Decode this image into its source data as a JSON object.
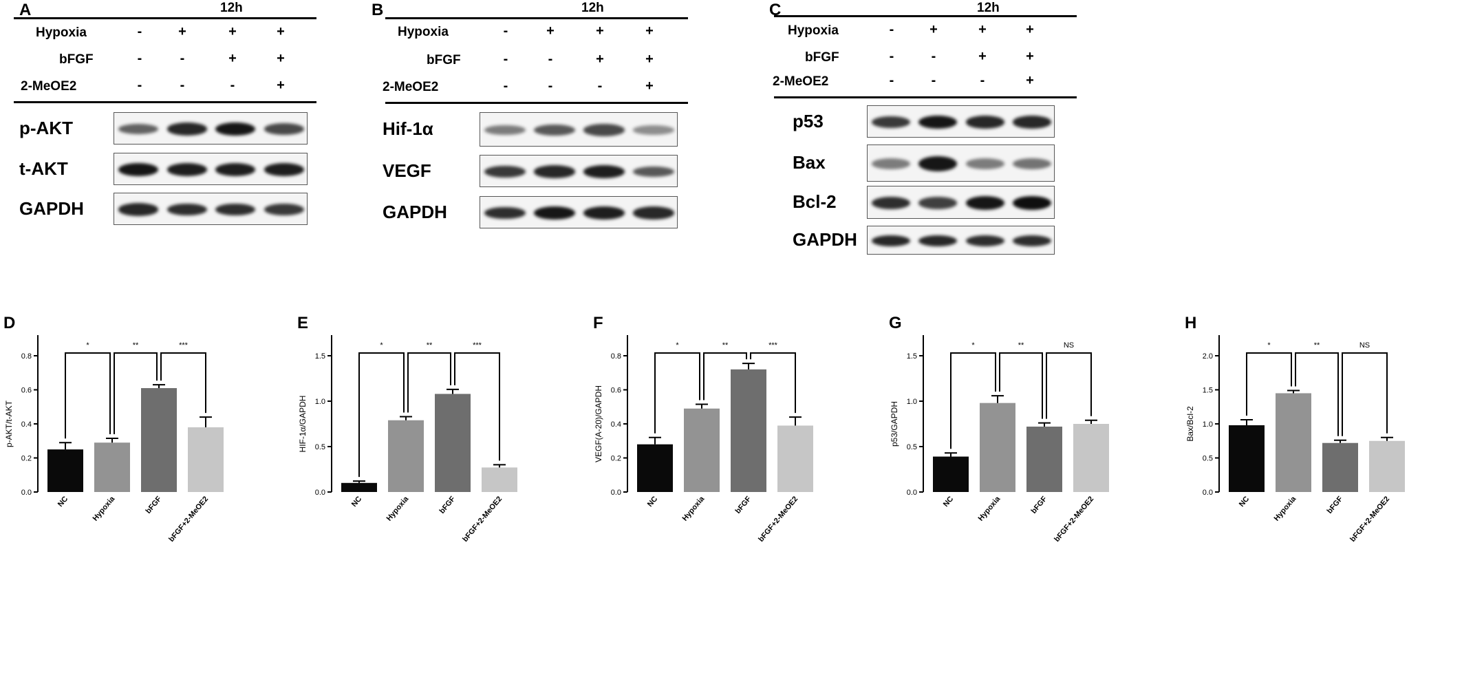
{
  "conditions": {
    "hypoxia": "Hypoxia",
    "bfgf": "bFGF",
    "meoe2": "2-MeOE2",
    "plus": "+",
    "minus": "-"
  },
  "panel_A": {
    "label": "A",
    "time": "12h",
    "proteins": [
      "p-AKT",
      "t-AKT",
      "GAPDH"
    ]
  },
  "panel_B": {
    "label": "B",
    "time": "12h",
    "proteins": [
      "Hif-1α",
      "VEGF",
      "GAPDH"
    ]
  },
  "panel_C": {
    "label": "C",
    "time": "12h",
    "proteins": [
      "p53",
      "Bax",
      "Bcl-2",
      "GAPDH"
    ]
  },
  "chart_data": [
    {
      "type": "bar",
      "panel": "D",
      "ylabel": "p-AKT/t-AKT",
      "categories": [
        "NC",
        "Hypoxia",
        "bFGF",
        "bFGF+2-MeOE2"
      ],
      "values": [
        0.25,
        0.29,
        0.61,
        0.38
      ],
      "errors": [
        0.04,
        0.025,
        0.02,
        0.06
      ],
      "ylim": [
        0,
        0.8
      ],
      "yticks": [
        "0.0",
        "0.2",
        "0.4",
        "0.6",
        "0.8"
      ],
      "significance": [
        "*",
        "**",
        "***"
      ]
    },
    {
      "type": "bar",
      "panel": "E",
      "ylabel": "HIF-1α/GAPDH",
      "categories": [
        "NC",
        "Hypoxia",
        "bFGF",
        "bFGF+2-MeOE2"
      ],
      "values": [
        0.1,
        0.79,
        1.08,
        0.27
      ],
      "errors": [
        0.02,
        0.04,
        0.05,
        0.03
      ],
      "ylim": [
        0,
        1.5
      ],
      "yticks": [
        "0.0",
        "0.5",
        "1.0",
        "1.5"
      ],
      "significance": [
        "*",
        "**",
        "***"
      ]
    },
    {
      "type": "bar",
      "panel": "F",
      "ylabel": "VEGF(A-20)/GAPDH",
      "categories": [
        "NC",
        "Hypoxia",
        "bFGF",
        "bFGF+2-MeOE2"
      ],
      "values": [
        0.28,
        0.49,
        0.72,
        0.39
      ],
      "errors": [
        0.04,
        0.025,
        0.035,
        0.05
      ],
      "ylim": [
        0,
        0.8
      ],
      "yticks": [
        "0.0",
        "0.2",
        "0.4",
        "0.6",
        "0.8"
      ],
      "significance": [
        "*",
        "**",
        "***"
      ]
    },
    {
      "type": "bar",
      "panel": "G",
      "ylabel": "p53/GAPDH",
      "categories": [
        "NC",
        "Hypoxia",
        "bFGF",
        "bFGF+2-MeOE2"
      ],
      "values": [
        0.39,
        0.98,
        0.72,
        0.75
      ],
      "errors": [
        0.04,
        0.08,
        0.04,
        0.04
      ],
      "ylim": [
        0,
        1.5
      ],
      "yticks": [
        "0.0",
        "0.5",
        "1.0",
        "1.5"
      ],
      "significance": [
        "*",
        "**",
        "NS"
      ]
    },
    {
      "type": "bar",
      "panel": "H",
      "ylabel": "Bax/Bcl-2",
      "categories": [
        "NC",
        "Hypoxia",
        "bFGF",
        "bFGF+2-MeOE2"
      ],
      "values": [
        0.98,
        1.45,
        0.72,
        0.75
      ],
      "errors": [
        0.08,
        0.04,
        0.04,
        0.05
      ],
      "ylim": [
        0,
        2.0
      ],
      "yticks": [
        "0.0",
        "0.5",
        "1.0",
        "1.5",
        "2.0"
      ],
      "significance": [
        "*",
        "**",
        "NS"
      ]
    }
  ],
  "colors": {
    "bars": [
      "#0a0a0a",
      "#939393",
      "#6e6e6e",
      "#c6c6c6"
    ]
  }
}
